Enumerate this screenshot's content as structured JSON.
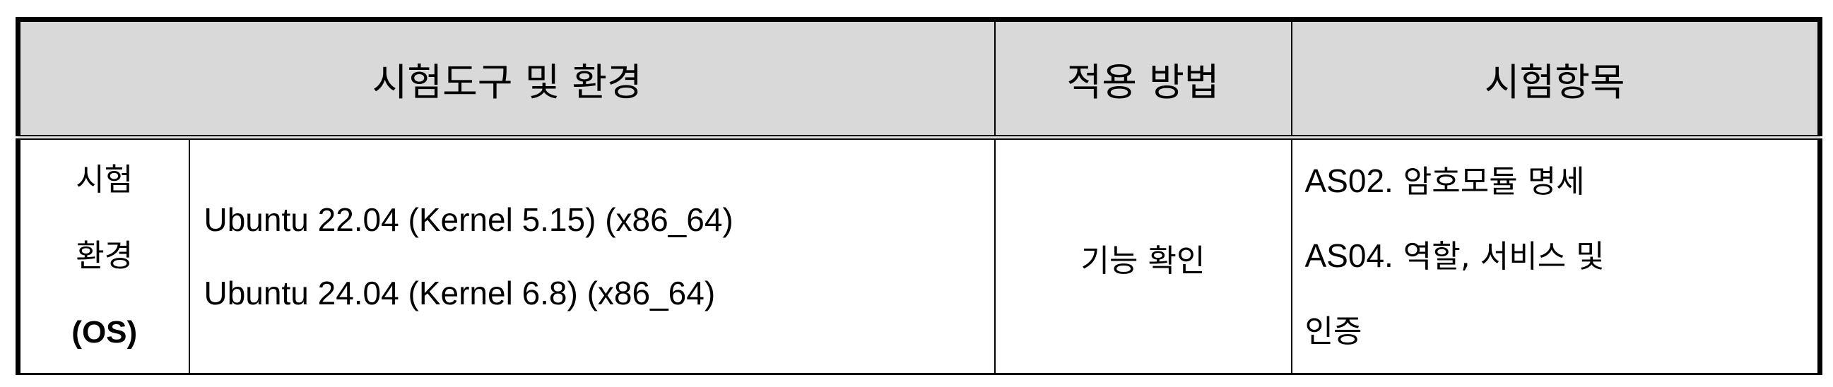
{
  "header": {
    "col_tools": "시험도구 및 환경",
    "col_method": "적용 방법",
    "col_items": "시험항목"
  },
  "row": {
    "env_label": {
      "line1": "시험",
      "line2": "환경",
      "line3": "(OS)"
    },
    "os_versions": [
      "Ubuntu 22.04 (Kernel 5.15) (x86_64)",
      "Ubuntu 24.04 (Kernel 6.8) (x86_64)"
    ],
    "method": "기능 확인",
    "test_items": [
      {
        "code": "AS02.",
        "text": " 암호모듈 명세"
      },
      {
        "code": "AS04.",
        "text": " 역할, 서비스 및"
      },
      {
        "code": "",
        "text": "인증"
      }
    ]
  }
}
